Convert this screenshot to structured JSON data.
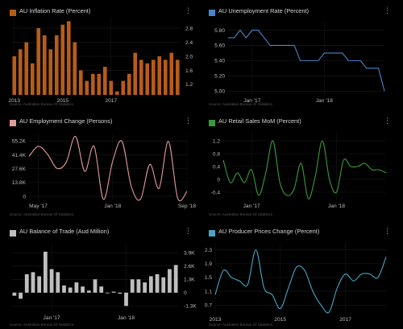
{
  "source_label": "Source: Australian Bureau Of Statistics",
  "colors": {
    "inflation": "#b85c18",
    "unemployment": "#4a84c8",
    "employment": "#e59a9a",
    "retail": "#3a9a3a",
    "trade": "#bfbfbf",
    "ppi": "#46a6c4"
  },
  "chart_data": [
    {
      "id": "inflation",
      "type": "bar",
      "title": "AU Inflation Rate (Percent)",
      "yticks": [
        "2.8",
        "2.4",
        "2.0",
        "1.6",
        "1.2"
      ],
      "ytick_values": [
        2.8,
        2.4,
        2.0,
        1.6,
        1.2
      ],
      "ylim": [
        0.9,
        3.1
      ],
      "xticks": [
        "2013",
        "2015",
        "2017"
      ],
      "xtick_positions": [
        0.5,
        8.5,
        16.5
      ],
      "values": [
        2.0,
        2.2,
        2.4,
        1.8,
        2.8,
        2.6,
        2.2,
        2.6,
        2.9,
        3.0,
        2.4,
        1.6,
        1.3,
        1.5,
        1.5,
        1.7,
        1.3,
        1.0,
        1.3,
        1.5,
        2.1,
        1.9,
        1.8,
        1.9,
        2.0,
        1.9,
        2.1,
        1.9
      ]
    },
    {
      "id": "unemployment",
      "type": "line",
      "title": "AU Unemployment Rate (Percent)",
      "yticks": [
        "5.80",
        "5.60",
        "5.40",
        "5.20",
        "5.00"
      ],
      "ytick_values": [
        5.8,
        5.6,
        5.4,
        5.2,
        5.0
      ],
      "ylim": [
        4.95,
        5.9
      ],
      "xticks": [
        "Jan '17",
        "Jan '18"
      ],
      "xtick_positions": [
        4,
        16
      ],
      "x": [
        0,
        1,
        2,
        3,
        4,
        5,
        6,
        7,
        8,
        9,
        10,
        11,
        12,
        13,
        14,
        15,
        16,
        17,
        18,
        19,
        20,
        21,
        22,
        23,
        24,
        25,
        26
      ],
      "values": [
        5.7,
        5.7,
        5.8,
        5.7,
        5.8,
        5.8,
        5.7,
        5.6,
        5.6,
        5.6,
        5.6,
        5.6,
        5.4,
        5.4,
        5.4,
        5.4,
        5.5,
        5.5,
        5.5,
        5.5,
        5.4,
        5.4,
        5.4,
        5.3,
        5.3,
        5.3,
        5.0
      ]
    },
    {
      "id": "employment",
      "type": "line",
      "title": "AU Employment Change (Persons)",
      "yticks": [
        "55.2K",
        "41.4K",
        "27.6K",
        "13.8K",
        "0"
      ],
      "ytick_values": [
        55200,
        41400,
        27600,
        13800,
        0
      ],
      "ylim": [
        -4000,
        62000
      ],
      "xticks": [
        "May '17",
        "Jan '18",
        "Sep '18"
      ],
      "xtick_positions": [
        1,
        9,
        17
      ],
      "x": [
        0,
        1,
        2,
        3,
        4,
        5,
        6,
        7,
        8,
        9,
        10,
        11,
        12,
        13,
        14,
        15,
        16,
        17
      ],
      "values": [
        40000,
        50000,
        42000,
        28000,
        34000,
        60000,
        25000,
        50000,
        -3000,
        35000,
        55000,
        10000,
        -3000,
        32000,
        8000,
        55000,
        -2000,
        5000
      ]
    },
    {
      "id": "retail",
      "type": "line",
      "title": "AU Retail Sales MoM (Percent)",
      "yticks": [
        "1.2",
        "0.8",
        "0.4",
        "0",
        "-0.4"
      ],
      "ytick_values": [
        1.2,
        0.8,
        0.4,
        0,
        -0.4
      ],
      "ylim": [
        -0.65,
        1.45
      ],
      "xticks": [
        "Jan '17",
        "Jan '18"
      ],
      "xtick_positions": [
        4,
        16
      ],
      "x": [
        0,
        1,
        2,
        3,
        4,
        5,
        6,
        7,
        8,
        9,
        10,
        11,
        12,
        13,
        14,
        15,
        16,
        17,
        18,
        19,
        20,
        21,
        22,
        23
      ],
      "values": [
        0.6,
        -0.1,
        0.2,
        -0.1,
        0.3,
        -0.5,
        0.2,
        1.2,
        -0.1,
        -0.5,
        -0.3,
        0.5,
        -0.6,
        0.1,
        1.2,
        0.0,
        -0.4,
        0.6,
        0.4,
        0.4,
        0.5,
        0.3,
        0.3,
        0.2
      ]
    },
    {
      "id": "trade",
      "type": "bar",
      "title": "AU Balance of Trade (Aud Million)",
      "yticks": [
        "3.9K",
        "2.6K",
        "1.3K",
        "0",
        "-1.3K"
      ],
      "ytick_values": [
        3900,
        2600,
        1300,
        0,
        -1300
      ],
      "ylim": [
        -1900,
        4700
      ],
      "xticks": [
        "Jan '17",
        "Jan '18"
      ],
      "xtick_positions": [
        6.5,
        18.5
      ],
      "values": [
        -300,
        -600,
        1800,
        2000,
        1600,
        4000,
        2300,
        2000,
        700,
        500,
        1000,
        600,
        200,
        1300,
        600,
        0,
        100,
        -100,
        -1300,
        1300,
        1300,
        1000,
        1600,
        1800,
        1500,
        2300,
        2700
      ]
    },
    {
      "id": "ppi",
      "type": "line",
      "title": "AU Producer Prices Change (Percent)",
      "yticks": [
        "2.3",
        "1.9",
        "1.5",
        "1.1",
        "0.7"
      ],
      "ytick_values": [
        2.3,
        1.9,
        1.5,
        1.1,
        0.7
      ],
      "ylim": [
        0.45,
        2.5
      ],
      "xticks": [
        "2013",
        "2015",
        "2017"
      ],
      "xtick_positions": [
        0,
        8,
        16
      ],
      "x": [
        0,
        1,
        2,
        3,
        4,
        5,
        6,
        7,
        8,
        9,
        10,
        11,
        12,
        13,
        14,
        15,
        16,
        17,
        18,
        19,
        20,
        21
      ],
      "values": [
        1.0,
        1.7,
        1.5,
        1.4,
        1.3,
        2.3,
        1.2,
        1.0,
        0.6,
        1.2,
        1.8,
        1.7,
        1.1,
        0.7,
        0.5,
        1.2,
        1.6,
        1.4,
        1.6,
        1.6,
        1.5,
        2.1
      ]
    }
  ]
}
